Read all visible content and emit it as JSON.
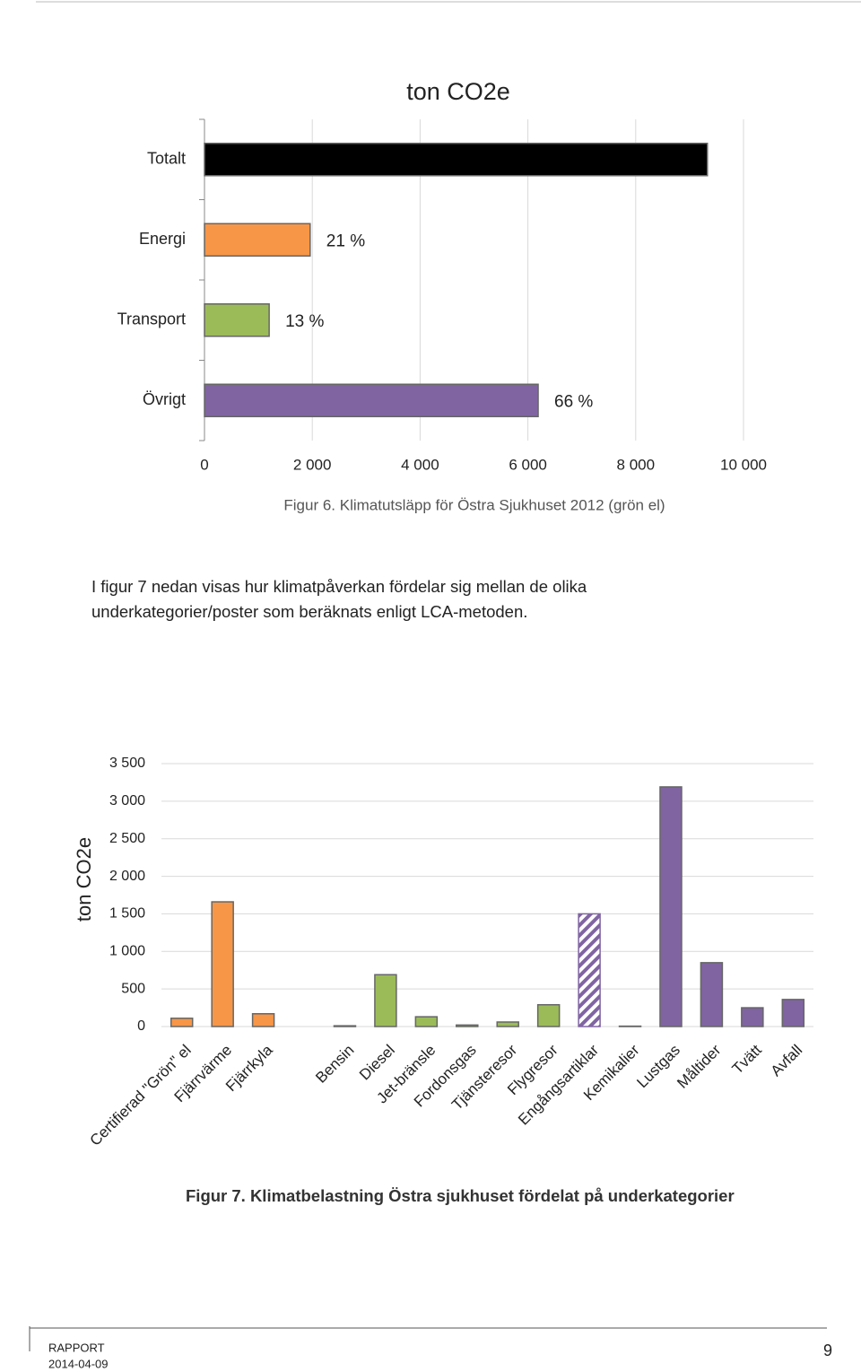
{
  "chart_data": [
    {
      "type": "hbar",
      "title": "ton CO2e",
      "categories": [
        "Totalt",
        "Energi",
        "Transport",
        "Övrigt"
      ],
      "values": [
        9330,
        1960,
        1200,
        6190
      ],
      "share_labels": [
        null,
        "21 %",
        "13 %",
        "66 %"
      ],
      "colors": [
        "#000000",
        "#f79646",
        "#9bbb59",
        "#8064a2"
      ],
      "xlim": [
        0,
        10000
      ],
      "xticks": [
        0,
        {
          "value": 2000,
          "label": "2 000"
        },
        {
          "value": 4000,
          "label": "4 000"
        },
        {
          "value": 6000,
          "label": "6 000"
        },
        {
          "value": 8000,
          "label": "8 000"
        },
        {
          "value": 10000,
          "label": "10 000"
        }
      ],
      "grid": true
    },
    {
      "type": "bar",
      "y_label": "ton CO2e",
      "categories": [
        "Certifierad \"Grön\" el",
        "Fjärrvärme",
        "Fjärrkyla",
        null,
        "Bensin",
        "Diesel",
        "Jet-bränsle",
        "Fordonsgas",
        "Tjänsteresor",
        "Flygresor",
        "Engångsartiklar",
        "Kemikalier",
        "Lustgas",
        "Måltider",
        "Tvätt",
        "Avfall"
      ],
      "values": [
        110,
        1660,
        170,
        null,
        10,
        690,
        130,
        20,
        60,
        290,
        1500,
        5,
        3190,
        850,
        250,
        360
      ],
      "colors": [
        "#f79646",
        "#f79646",
        "#f79646",
        null,
        "#9bbb59",
        "#9bbb59",
        "#9bbb59",
        "#9bbb59",
        "#9bbb59",
        "#9bbb59",
        "#8064a2",
        "#8064a2",
        "#8064a2",
        "#8064a2",
        "#8064a2",
        "#8064a2"
      ],
      "hatched": [
        false,
        false,
        false,
        false,
        false,
        false,
        false,
        false,
        false,
        false,
        true,
        false,
        false,
        false,
        false,
        false
      ],
      "ylim": [
        0,
        3500
      ],
      "yticks": [
        0,
        500,
        {
          "value": 1000,
          "label": "1 000"
        },
        {
          "value": 1500,
          "label": "1 500"
        },
        {
          "value": 2000,
          "label": "2 000"
        },
        {
          "value": 2500,
          "label": "2 500"
        },
        {
          "value": 3000,
          "label": "3 000"
        },
        {
          "value": 3500,
          "label": "3 500"
        }
      ],
      "grid": true
    }
  ],
  "captions": [
    "Figur 6. Klimatutsläpp för Östra Sjukhuset 2012 (grön el)",
    "Figur 7. Klimatbelastning Östra sjukhuset fördelat på underkategorier"
  ],
  "paragraph": [
    "I figur 7 nedan visas hur klimatpåverkan fördelar sig mellan de olika",
    "underkategorier/poster som beräknats enligt LCA-metoden."
  ],
  "footer": {
    "label": "RAPPORT",
    "date": "2014-04-09",
    "page": "9"
  }
}
